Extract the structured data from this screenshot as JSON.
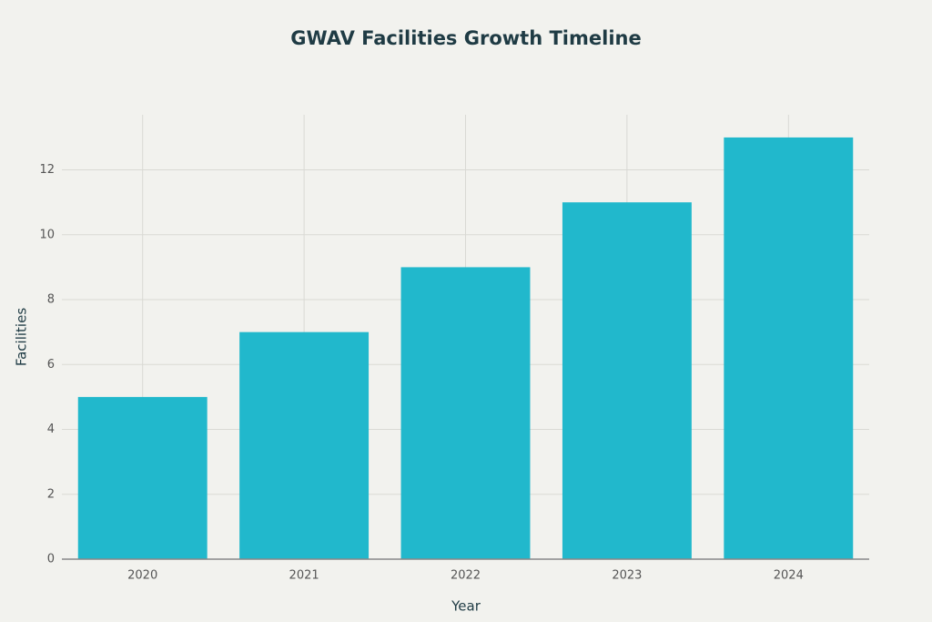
{
  "chart_data": {
    "type": "bar",
    "title": "GWAV Facilities Growth Timeline",
    "x_label": "Year",
    "y_label": "Facilities",
    "categories": [
      "2020",
      "2021",
      "2022",
      "2023",
      "2024"
    ],
    "values": [
      5,
      7,
      9,
      11,
      13
    ],
    "color": "#21b8cc",
    "ylim": [
      0,
      13.7
    ],
    "yticks": [
      0,
      2,
      4,
      6,
      8,
      10,
      12
    ],
    "grid": true
  }
}
